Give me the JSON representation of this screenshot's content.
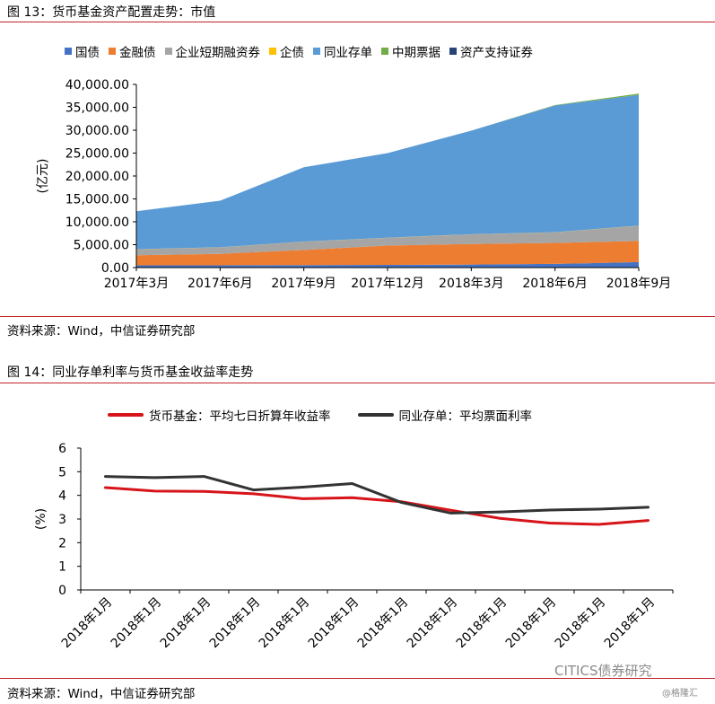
{
  "figure1": {
    "title": "图 13：货币基金资产配置走势：市值",
    "source": "资料来源：Wind，中信证券研究部"
  },
  "figure2": {
    "title": "图 14：同业存单利率与货币基金收益率走势",
    "source": "资料来源：Wind，中信证券研究部"
  },
  "watermark": {
    "text": "CITICS债券研究",
    "sub": "@格隆汇"
  },
  "chart_data": [
    {
      "type": "area",
      "stacked": true,
      "title": "",
      "xlabel": "",
      "ylabel": "(亿元)",
      "ylim": [
        0,
        40000
      ],
      "yticks": [
        "0.00",
        "5,000.00",
        "10,000.00",
        "15,000.00",
        "20,000.00",
        "25,000.00",
        "30,000.00",
        "35,000.00",
        "40,000.00"
      ],
      "categories": [
        "2017年3月",
        "2017年6月",
        "2017年9月",
        "2017年12月",
        "2018年3月",
        "2018年6月",
        "2018年9月"
      ],
      "legend_position": "top",
      "series": [
        {
          "name": "国债",
          "color": "#4472c4",
          "values": [
            500,
            500,
            550,
            600,
            650,
            800,
            1200
          ]
        },
        {
          "name": "金融债",
          "color": "#ed7d31",
          "values": [
            2200,
            2500,
            3300,
            4200,
            4500,
            4600,
            4600
          ]
        },
        {
          "name": "企业短期融资券",
          "color": "#a5a5a5",
          "values": [
            1300,
            1400,
            1800,
            1700,
            2100,
            2300,
            3300
          ]
        },
        {
          "name": "企债",
          "color": "#ffc000",
          "values": [
            30,
            30,
            30,
            30,
            30,
            30,
            40
          ]
        },
        {
          "name": "同业存单",
          "color": "#5b9bd5",
          "values": [
            8270,
            10170,
            16220,
            18470,
            22620,
            27670,
            28560
          ]
        },
        {
          "name": "中期票据",
          "color": "#70ad47",
          "values": [
            0,
            0,
            0,
            0,
            0,
            100,
            300
          ]
        },
        {
          "name": "资产支持证券",
          "color": "#264478",
          "values": [
            0,
            0,
            0,
            0,
            0,
            0,
            0
          ]
        }
      ]
    },
    {
      "type": "line",
      "title": "",
      "xlabel": "",
      "ylabel": "(%)",
      "ylim": [
        0,
        6
      ],
      "yticks": [
        "0",
        "1",
        "2",
        "3",
        "4",
        "5",
        "6"
      ],
      "categories": [
        "2018年1月",
        "2018年1月",
        "2018年1月",
        "2018年1月",
        "2018年1月",
        "2018年1月",
        "2018年1月",
        "2018年1月",
        "2018年1月",
        "2018年1月",
        "2018年1月",
        "2018年1月"
      ],
      "legend_position": "top",
      "series": [
        {
          "name": "货币基金：平均七日折算年收益率",
          "color": "#d7141a",
          "values": [
            4.33,
            4.18,
            4.17,
            4.07,
            3.86,
            3.9,
            3.73,
            3.37,
            3.03,
            2.83,
            2.77,
            2.94
          ]
        },
        {
          "name": "同业存单：平均票面利率",
          "color": "#333333",
          "values": [
            4.8,
            4.75,
            4.8,
            4.23,
            4.35,
            4.5,
            3.7,
            3.25,
            3.3,
            3.38,
            3.42,
            3.5
          ]
        }
      ]
    }
  ]
}
